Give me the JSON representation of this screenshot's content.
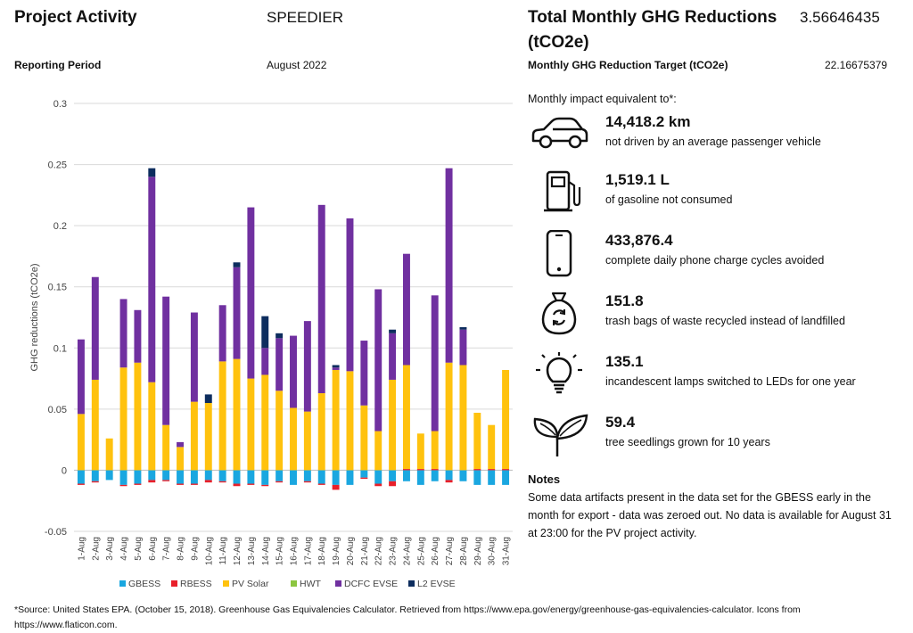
{
  "header": {
    "project_activity_label": "Project Activity",
    "project_activity_value": "SPEEDIER",
    "reporting_period_label": "Reporting Period",
    "reporting_period_value": "August 2022",
    "total_label_line1": "Total Monthly GHG Reductions",
    "total_label_line2": "(tCO2e)",
    "total_value": "3.56646435",
    "target_label": "Monthly GHG Reduction Target (tCO2e)",
    "target_value": "22.16675379"
  },
  "impact": {
    "intro": "Monthly impact equivalent to*:",
    "items": [
      {
        "icon": "car-icon",
        "value": "14,418.2 km",
        "desc": "not driven by an average passenger vehicle"
      },
      {
        "icon": "fuel-pump-icon",
        "value": "1,519.1 L",
        "desc": "of gasoline not consumed"
      },
      {
        "icon": "smartphone-icon",
        "value": "433,876.4",
        "desc": "complete daily phone charge cycles avoided"
      },
      {
        "icon": "recycle-bag-icon",
        "value": "151.8",
        "desc": "trash bags of waste recycled instead of landfilled"
      },
      {
        "icon": "light-bulb-icon",
        "value": "135.1",
        "desc": "incandescent lamps switched to LEDs for one year"
      },
      {
        "icon": "seedling-icon",
        "value": "59.4",
        "desc": "tree seedlings grown for 10 years"
      }
    ]
  },
  "notes": {
    "title": "Notes",
    "text": "Some data artifacts present in the data set for the GBESS early in the month for export - data was zeroed out. No data is available for August 31 at 23:00 for the PV project activity."
  },
  "footer": {
    "source": "*Source: United States EPA. (October 15, 2018). Greenhouse Gas Equivalencies Calculator. Retrieved from https://www.epa.gov/energy/greenhouse-gas-equivalencies-calculator. Icons from https://www.flaticon.com."
  },
  "colors": {
    "GBESS": "#1aa7e0",
    "RBESS": "#e8202a",
    "PV Solar": "#ffc20e",
    "HWT": "#8cc540",
    "DCFC EVSE": "#7030a0",
    "L2 EVSE": "#0d2d5e"
  },
  "chart_data": {
    "type": "bar",
    "stacked": true,
    "ylabel": "GHG reductions (tCO2e)",
    "xlabel": "",
    "ylim": [
      -0.05,
      0.3
    ],
    "yticks": [
      -0.05,
      0,
      0.05,
      0.1,
      0.15,
      0.2,
      0.25,
      0.3
    ],
    "grid": true,
    "legend": "bottom",
    "categories": [
      "1-Aug",
      "2-Aug",
      "3-Aug",
      "4-Aug",
      "5-Aug",
      "6-Aug",
      "7-Aug",
      "8-Aug",
      "9-Aug",
      "10-Aug",
      "11-Aug",
      "12-Aug",
      "13-Aug",
      "14-Aug",
      "15-Aug",
      "16-Aug",
      "17-Aug",
      "18-Aug",
      "19-Aug",
      "20-Aug",
      "21-Aug",
      "22-Aug",
      "23-Aug",
      "24-Aug",
      "25-Aug",
      "26-Aug",
      "27-Aug",
      "28-Aug",
      "29-Aug",
      "30-Aug",
      "31-Aug"
    ],
    "series": [
      {
        "name": "GBESS",
        "values": [
          -0.011,
          -0.009,
          -0.008,
          -0.012,
          -0.011,
          -0.008,
          -0.008,
          -0.011,
          -0.011,
          -0.008,
          -0.009,
          -0.011,
          -0.011,
          -0.012,
          -0.009,
          -0.012,
          -0.009,
          -0.011,
          -0.012,
          -0.012,
          -0.006,
          -0.011,
          -0.009,
          -0.009,
          -0.012,
          -0.009,
          -0.008,
          -0.009,
          -0.012,
          -0.012,
          -0.012
        ]
      },
      {
        "name": "RBESS",
        "values": [
          -0.001,
          -0.001,
          0,
          -0.001,
          -0.001,
          -0.002,
          -0.001,
          -0.001,
          -0.001,
          -0.002,
          -0.001,
          -0.002,
          -0.001,
          -0.001,
          -0.001,
          0,
          -0.001,
          -0.001,
          -0.004,
          0,
          -0.001,
          -0.002,
          -0.004,
          0.001,
          0.001,
          0.001,
          -0.002,
          0,
          0.001,
          0.001,
          0.001
        ]
      },
      {
        "name": "PV Solar",
        "values": [
          0.046,
          0.074,
          0.026,
          0.084,
          0.088,
          0.072,
          0.037,
          0.019,
          0.056,
          0.055,
          0.089,
          0.091,
          0.075,
          0.078,
          0.065,
          0.051,
          0.048,
          0.063,
          0.082,
          0.081,
          0.053,
          0.032,
          0.074,
          0.085,
          0.029,
          0.031,
          0.088,
          0.086,
          0.046,
          0.036,
          0.081
        ]
      },
      {
        "name": "HWT",
        "values": [
          0,
          0,
          0,
          0,
          0,
          0,
          0,
          0,
          0,
          0,
          0,
          0,
          0,
          0,
          0,
          0,
          0,
          0,
          0,
          0,
          0,
          0,
          0,
          0,
          0,
          0,
          0,
          0,
          0,
          0,
          0
        ]
      },
      {
        "name": "DCFC EVSE",
        "values": [
          0.061,
          0.084,
          0,
          0.056,
          0.043,
          0.168,
          0.105,
          0.004,
          0.073,
          0,
          0.046,
          0.075,
          0.14,
          0.022,
          0.043,
          0.059,
          0.074,
          0.154,
          0.002,
          0.125,
          0.053,
          0.116,
          0.038,
          0.091,
          0,
          0.111,
          0.159,
          0.029,
          0,
          0,
          0
        ]
      },
      {
        "name": "L2 EVSE",
        "values": [
          0,
          0,
          0,
          0,
          0,
          0.007,
          0,
          0,
          0,
          0.007,
          0,
          0.004,
          0,
          0.026,
          0.004,
          0,
          0,
          0,
          0.002,
          0,
          0,
          0,
          0.003,
          0,
          0,
          0,
          0,
          0.002,
          0,
          0,
          0
        ]
      }
    ]
  }
}
